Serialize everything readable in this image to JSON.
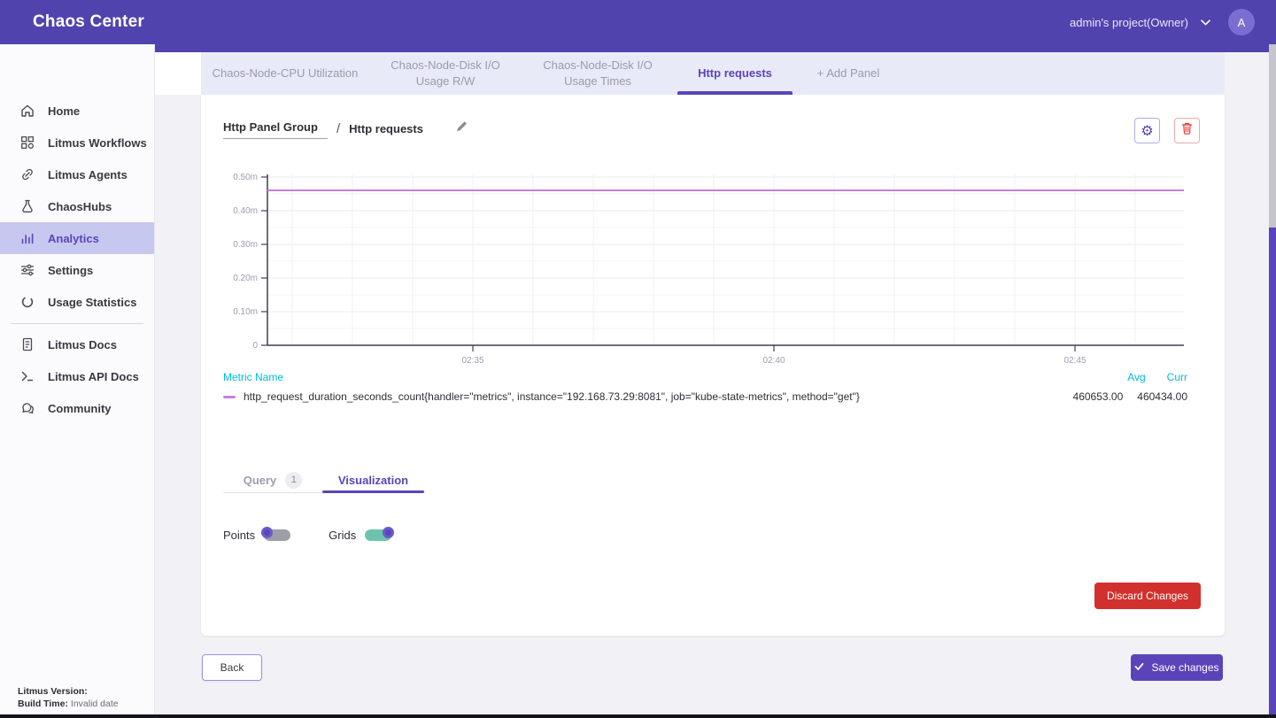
{
  "header": {
    "title": "Chaos Center",
    "project_label": "admin's project(Owner)",
    "avatar_initial": "A"
  },
  "sidebar": {
    "items": [
      {
        "label": "Home",
        "icon": "home-icon"
      },
      {
        "label": "Litmus Workflows",
        "icon": "workflows-icon"
      },
      {
        "label": "Litmus Agents",
        "icon": "link-icon"
      },
      {
        "label": "ChaosHubs",
        "icon": "flask-icon"
      },
      {
        "label": "Analytics",
        "icon": "bar-chart-icon",
        "active": true
      },
      {
        "label": "Settings",
        "icon": "sliders-icon"
      },
      {
        "label": "Usage Statistics",
        "icon": "circle-icon"
      }
    ],
    "doc_items": [
      {
        "label": "Litmus Docs",
        "icon": "document-icon"
      },
      {
        "label": "Litmus API Docs",
        "icon": "terminal-icon"
      },
      {
        "label": "Community",
        "icon": "community-icon"
      }
    ],
    "footer": {
      "version_label": "Litmus Version:",
      "build_label": "Build Time:",
      "build_value": "Invalid date"
    }
  },
  "tabs": [
    {
      "label": "Chaos-Node-CPU Utilization"
    },
    {
      "label": "Chaos-Node-Disk I/O Usage R/W"
    },
    {
      "label": "Chaos-Node-Disk I/O Usage Times"
    },
    {
      "label": "Http requests",
      "active": true
    },
    {
      "label": "+ Add Panel"
    }
  ],
  "panel": {
    "group_name": "Http Panel Group",
    "separator": "/",
    "panel_name": "Http requests"
  },
  "chart_data": {
    "type": "line",
    "title": "",
    "x_ticks": [
      "02:35",
      "02:40",
      "02:45"
    ],
    "y_ticks": [
      "0",
      "0.10m",
      "0.20m",
      "0.30m",
      "0.40m",
      "0.50m"
    ],
    "ylim": [
      0,
      500000
    ],
    "grid": true,
    "legend_position": "bottom",
    "series": [
      {
        "name": "http_request_duration_seconds_count{handler=\"metrics\", instance=\"192.168.73.29:8081\", job=\"kube-state-metrics\", method=\"get\"}",
        "shape": "constant-line",
        "approx_value": 460500,
        "avg": "460653.00",
        "curr": "460434.00",
        "color": "#c77fe0"
      }
    ]
  },
  "legend": {
    "metric_header": "Metric Name",
    "avg_header": "Avg",
    "curr_header": "Curr"
  },
  "editor_tabs": {
    "query_label": "Query",
    "query_badge": "1",
    "visualization_label": "Visualization"
  },
  "toggles": [
    {
      "label": "Points",
      "on": false
    },
    {
      "label": "Grids",
      "on": true
    }
  ],
  "buttons": {
    "discard": "Discard Changes",
    "back": "Back",
    "save": "Save changes"
  },
  "colors": {
    "header_bg": "#5143ae",
    "accent": "#5b44ba",
    "active_nav_bg": "#c7c8ef",
    "tabstrip_bg": "#e9eaf7",
    "cyan_label": "#00bcd4",
    "danger": "#d2302c",
    "toggle_on_track": "#6cc4ad",
    "series_line": "#c77fe0"
  }
}
